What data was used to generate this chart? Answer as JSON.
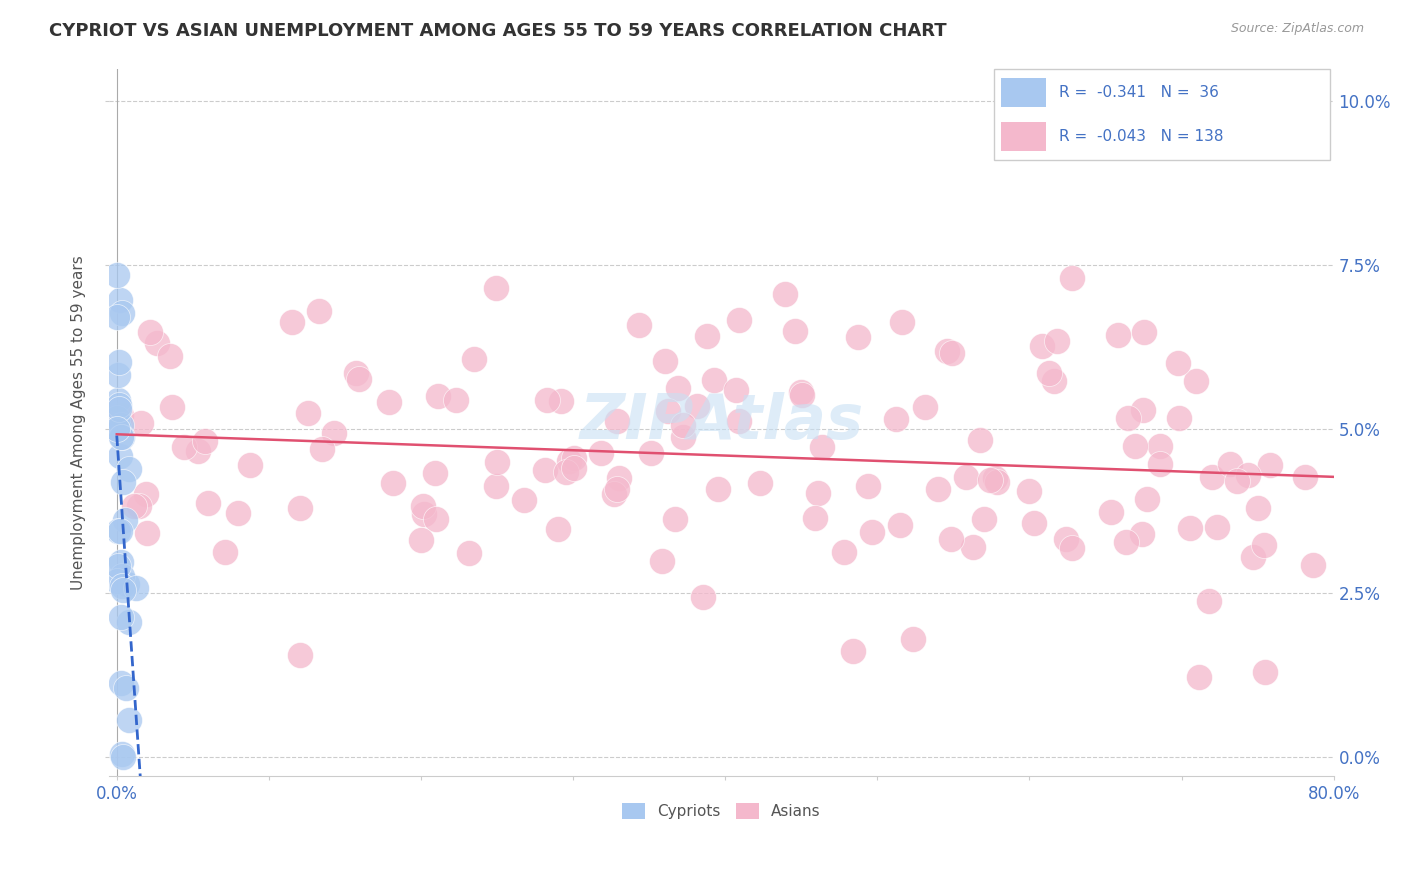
{
  "title": "CYPRIOT VS ASIAN UNEMPLOYMENT AMONG AGES 55 TO 59 YEARS CORRELATION CHART",
  "source": "Source: ZipAtlas.com",
  "xlabel_vals": [
    0,
    10,
    20,
    30,
    40,
    50,
    60,
    70,
    80
  ],
  "xlabel_ticks_show": [
    "0.0%",
    "",
    "",
    "",
    "",
    "",
    "",
    "",
    "80.0%"
  ],
  "ylabel_vals": [
    0.0,
    2.5,
    5.0,
    7.5,
    10.0
  ],
  "ylabel_ticks": [
    "0.0%",
    "2.5%",
    "5.0%",
    "7.5%",
    "10.0%"
  ],
  "watermark": "ZIPAtlas",
  "legend_cypriot_r": "-0.341",
  "legend_cypriot_n": "36",
  "legend_asian_r": "-0.043",
  "legend_asian_n": "138",
  "legend_label_cypriot": "Cypriots",
  "legend_label_asian": "Asians",
  "cypriot_color": "#a8c8f0",
  "asian_color": "#f4b8cc",
  "trend_cypriot_color": "#3366cc",
  "trend_asian_color": "#e05070",
  "xmin": 0,
  "xmax": 80,
  "ymin": 0,
  "ymax": 10.5
}
